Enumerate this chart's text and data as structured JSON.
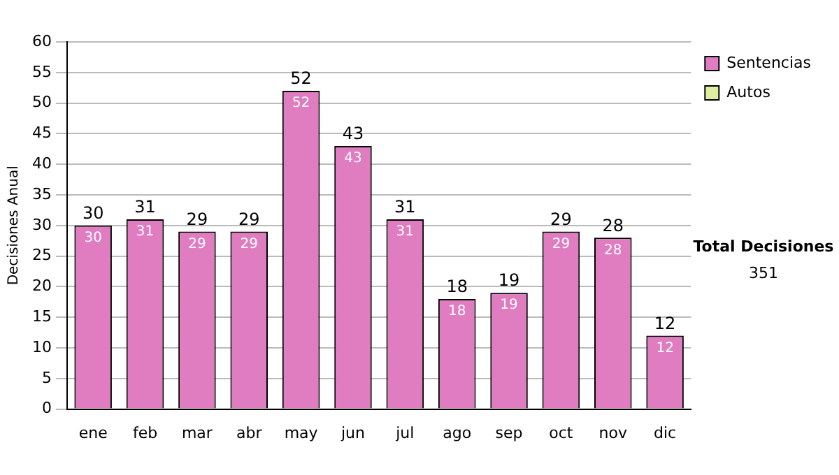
{
  "chart_data": {
    "type": "bar",
    "ylabel": "Decisiones Anual",
    "categories": [
      "ene",
      "feb",
      "mar",
      "abr",
      "may",
      "jun",
      "jul",
      "ago",
      "sep",
      "oct",
      "nov",
      "dic"
    ],
    "series": [
      {
        "name": "Sentencias",
        "color": "#e07cc0",
        "values": [
          30,
          31,
          29,
          29,
          52,
          43,
          31,
          18,
          19,
          29,
          28,
          12
        ],
        "value_labels": [
          "30",
          "31",
          "29",
          "29",
          "52",
          "43",
          "31",
          "18",
          "19",
          "29",
          "28",
          "12"
        ]
      },
      {
        "name": "Autos",
        "color": "#ddeea0",
        "values": [
          0,
          0,
          0,
          0,
          0,
          0,
          0,
          0,
          0,
          0,
          0,
          0
        ]
      }
    ],
    "stacked": true,
    "totals": [
      "30",
      "31",
      "29",
      "29",
      "52",
      "43",
      "31",
      "18",
      "19",
      "29",
      "28",
      "12"
    ],
    "ylim": [
      0,
      60
    ],
    "yticks": [
      0,
      5,
      10,
      15,
      20,
      25,
      30,
      35,
      40,
      45,
      50,
      55,
      60
    ],
    "grid": "y",
    "legend": "right",
    "annotations": [
      "Total Decisiones",
      "351"
    ]
  }
}
